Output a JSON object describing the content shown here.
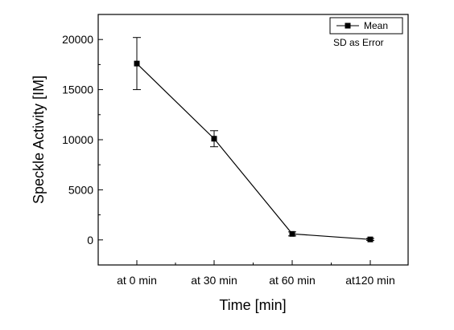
{
  "chart_data": {
    "type": "line",
    "xlabel": "Time [min]",
    "ylabel": "Speckle Activity [IM]",
    "categories": [
      "at 0 min",
      "at 30 min",
      "at 60 min",
      "at120 min"
    ],
    "ylim": [
      -2500,
      22500
    ],
    "yticks": [
      0,
      5000,
      10000,
      15000,
      20000
    ],
    "series": [
      {
        "name": "Mean",
        "values": [
          17600,
          10100,
          600,
          50
        ],
        "error": [
          2600,
          800,
          200,
          100
        ]
      }
    ],
    "legend": {
      "placement": "top-right",
      "entries": [
        "Mean",
        "SD as Error"
      ]
    },
    "grid": false,
    "colors": {
      "line": "#000000",
      "marker": "#000000"
    }
  }
}
